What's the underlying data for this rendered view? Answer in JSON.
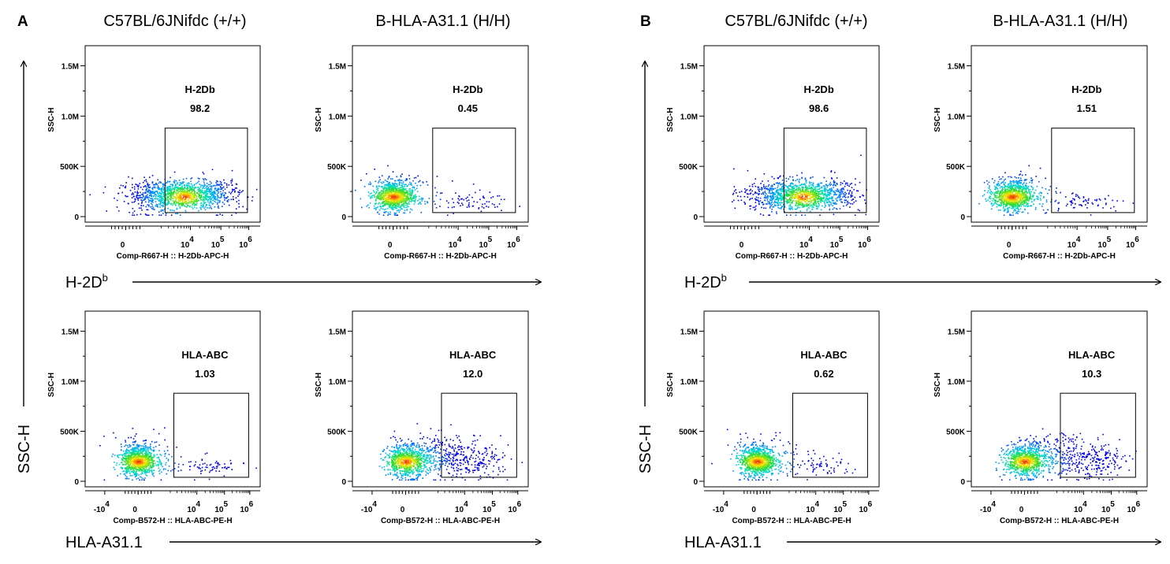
{
  "panels": [
    {
      "label": "A",
      "col_headers": [
        "C57BL/6JNifdc (+/+)",
        "B-HLA-A31.1 (H/H)"
      ],
      "y_axis_label": "SSC-H",
      "row_axis_labels": [
        {
          "text": "H-2D",
          "sup": "b"
        },
        {
          "text": "HLA-A31.1",
          "sup": ""
        }
      ]
    },
    {
      "label": "B",
      "col_headers": [
        "C57BL/6JNifdc (+/+)",
        "B-HLA-A31.1 (H/H)"
      ],
      "y_axis_label": "SSC-H",
      "row_axis_labels": [
        {
          "text": "H-2D",
          "sup": "b"
        },
        {
          "text": "HLA-A31.1",
          "sup": ""
        }
      ]
    }
  ],
  "chart_data": [
    {
      "type": "scatter",
      "panel": "A",
      "row": 0,
      "col": 0,
      "marker": "H-2Db",
      "value": "98.2",
      "ylabel": "SSC-H",
      "xlabel": "Comp-R667-H :: H-2Db-APC-H",
      "yticks": [
        "0",
        "500K",
        "1.0M",
        "1.5M"
      ],
      "ylim": [
        0,
        1700000
      ],
      "xticks": [
        {
          "t": "0"
        },
        {
          "t": "10",
          "sup": "4"
        },
        {
          "t": "10",
          "sup": "5"
        },
        {
          "t": "10",
          "sup": "6"
        }
      ],
      "population": "shifted-positive",
      "gate": {
        "x_range": [
          1.55,
          4.8
        ],
        "y_range": [
          40000,
          880000
        ]
      }
    },
    {
      "type": "scatter",
      "panel": "A",
      "row": 0,
      "col": 1,
      "marker": "H-2Db",
      "value": "0.45",
      "ylabel": "SSC-H",
      "xlabel": "Comp-R667-H :: H-2Db-APC-H",
      "yticks": [
        "0",
        "500K",
        "1.0M",
        "1.5M"
      ],
      "ylim": [
        0,
        1700000
      ],
      "xticks": [
        {
          "t": "0"
        },
        {
          "t": "10",
          "sup": "4"
        },
        {
          "t": "10",
          "sup": "5"
        },
        {
          "t": "10",
          "sup": "6"
        }
      ],
      "population": "negative",
      "gate": {
        "x_range": [
          1.55,
          4.8
        ],
        "y_range": [
          40000,
          880000
        ]
      }
    },
    {
      "type": "scatter",
      "panel": "A",
      "row": 1,
      "col": 0,
      "marker": "HLA-ABC",
      "value": "1.03",
      "ylabel": "SSC-H",
      "xlabel": "Comp-B572-H :: HLA-ABC-PE-H",
      "yticks": [
        "0",
        "500K",
        "1.0M",
        "1.5M"
      ],
      "ylim": [
        0,
        1700000
      ],
      "xticks": [
        {
          "t": "-10",
          "sup": "4"
        },
        {
          "t": "0"
        },
        {
          "t": "10",
          "sup": "4"
        },
        {
          "t": "10",
          "sup": "5"
        },
        {
          "t": "10",
          "sup": "6"
        }
      ],
      "population": "negative",
      "gate": {
        "x_range": [
          1.55,
          4.8
        ],
        "y_range": [
          40000,
          880000
        ]
      }
    },
    {
      "type": "scatter",
      "panel": "A",
      "row": 1,
      "col": 1,
      "marker": "HLA-ABC",
      "value": "12.0",
      "ylabel": "SSC-H",
      "xlabel": "Comp-B572-H :: HLA-ABC-PE-H",
      "yticks": [
        "0",
        "500K",
        "1.0M",
        "1.5M"
      ],
      "ylim": [
        0,
        1700000
      ],
      "xticks": [
        {
          "t": "-10",
          "sup": "4"
        },
        {
          "t": "0"
        },
        {
          "t": "10",
          "sup": "4"
        },
        {
          "t": "10",
          "sup": "5"
        },
        {
          "t": "10",
          "sup": "6"
        }
      ],
      "population": "partial",
      "gate": {
        "x_range": [
          1.55,
          4.8
        ],
        "y_range": [
          40000,
          880000
        ]
      }
    },
    {
      "type": "scatter",
      "panel": "B",
      "row": 0,
      "col": 0,
      "marker": "H-2Db",
      "value": "98.6",
      "ylabel": "SSC-H",
      "xlabel": "Comp-R667-H :: H-2Db-APC-H",
      "yticks": [
        "0",
        "500K",
        "1.0M",
        "1.5M"
      ],
      "ylim": [
        0,
        1700000
      ],
      "xticks": [
        {
          "t": "0"
        },
        {
          "t": "10",
          "sup": "4"
        },
        {
          "t": "10",
          "sup": "5"
        },
        {
          "t": "10",
          "sup": "6"
        }
      ],
      "population": "shifted-positive",
      "gate": {
        "x_range": [
          1.55,
          4.8
        ],
        "y_range": [
          40000,
          880000
        ]
      }
    },
    {
      "type": "scatter",
      "panel": "B",
      "row": 0,
      "col": 1,
      "marker": "H-2Db",
      "value": "1.51",
      "ylabel": "SSC-H",
      "xlabel": "Comp-R667-H :: H-2Db-APC-H",
      "yticks": [
        "0",
        "500K",
        "1.0M",
        "1.5M"
      ],
      "ylim": [
        0,
        1700000
      ],
      "xticks": [
        {
          "t": "0"
        },
        {
          "t": "10",
          "sup": "4"
        },
        {
          "t": "10",
          "sup": "5"
        },
        {
          "t": "10",
          "sup": "6"
        }
      ],
      "population": "negative",
      "gate": {
        "x_range": [
          1.55,
          4.8
        ],
        "y_range": [
          40000,
          880000
        ]
      }
    },
    {
      "type": "scatter",
      "panel": "B",
      "row": 1,
      "col": 0,
      "marker": "HLA-ABC",
      "value": "0.62",
      "ylabel": "SSC-H",
      "xlabel": "Comp-B572-H :: HLA-ABC-PE-H",
      "yticks": [
        "0",
        "500K",
        "1.0M",
        "1.5M"
      ],
      "ylim": [
        0,
        1700000
      ],
      "xticks": [
        {
          "t": "-10",
          "sup": "4"
        },
        {
          "t": "0"
        },
        {
          "t": "10",
          "sup": "4"
        },
        {
          "t": "10",
          "sup": "5"
        },
        {
          "t": "10",
          "sup": "6"
        }
      ],
      "population": "negative",
      "gate": {
        "x_range": [
          1.55,
          4.8
        ],
        "y_range": [
          40000,
          880000
        ]
      }
    },
    {
      "type": "scatter",
      "panel": "B",
      "row": 1,
      "col": 1,
      "marker": "HLA-ABC",
      "value": "10.3",
      "ylabel": "SSC-H",
      "xlabel": "Comp-B572-H :: HLA-ABC-PE-H",
      "yticks": [
        "0",
        "500K",
        "1.0M",
        "1.5M"
      ],
      "ylim": [
        0,
        1700000
      ],
      "xticks": [
        {
          "t": "-10",
          "sup": "4"
        },
        {
          "t": "0"
        },
        {
          "t": "10",
          "sup": "4"
        },
        {
          "t": "10",
          "sup": "5"
        },
        {
          "t": "10",
          "sup": "6"
        }
      ],
      "population": "partial",
      "gate": {
        "x_range": [
          1.55,
          4.8
        ],
        "y_range": [
          40000,
          880000
        ]
      }
    }
  ]
}
